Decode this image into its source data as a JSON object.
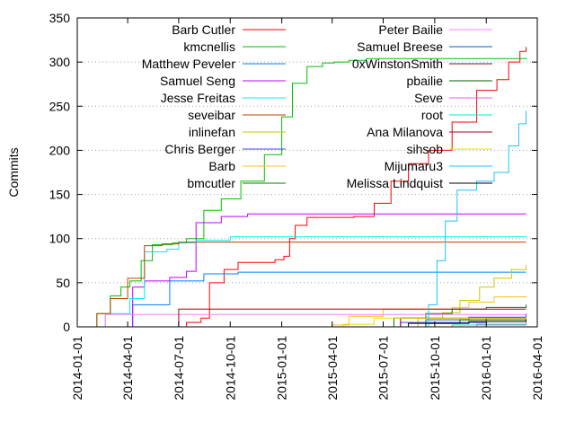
{
  "chart_data": {
    "type": "line",
    "title": "",
    "xlabel": "",
    "ylabel": "Commits",
    "x_ticks": [
      "2014-01-01",
      "2014-04-01",
      "2014-07-01",
      "2014-10-01",
      "2015-01-01",
      "2015-04-01",
      "2015-07-01",
      "2015-10-01",
      "2016-01-01",
      "2016-04-01"
    ],
    "xlim": [
      "2014-01-01",
      "2016-04-01"
    ],
    "y_ticks": [
      0,
      50,
      100,
      150,
      200,
      250,
      300,
      350
    ],
    "ylim": [
      0,
      350
    ],
    "grid": "horizontal-dotted",
    "legend_position": "top, two columns",
    "series": [
      {
        "name": "Barb Cutler",
        "color": "#ff0000",
        "points": [
          [
            "2014-07-01",
            0
          ],
          [
            "2014-07-15",
            5
          ],
          [
            "2014-08-10",
            10
          ],
          [
            "2014-08-25",
            50
          ],
          [
            "2014-09-20",
            65
          ],
          [
            "2014-10-15",
            73
          ],
          [
            "2014-12-20",
            76
          ],
          [
            "2015-01-05",
            80
          ],
          [
            "2015-01-15",
            100
          ],
          [
            "2015-01-25",
            115
          ],
          [
            "2015-02-15",
            124
          ],
          [
            "2015-05-10",
            125
          ],
          [
            "2015-06-15",
            140
          ],
          [
            "2015-07-15",
            165
          ],
          [
            "2015-08-15",
            185
          ],
          [
            "2015-09-20",
            200
          ],
          [
            "2015-11-01",
            232
          ],
          [
            "2015-12-15",
            268
          ],
          [
            "2016-01-20",
            280
          ],
          [
            "2016-02-10",
            300
          ],
          [
            "2016-03-01",
            312
          ],
          [
            "2016-03-12",
            317
          ]
        ]
      },
      {
        "name": "kmcnellis",
        "color": "#00c000",
        "points": [
          [
            "2014-01-20",
            0
          ],
          [
            "2014-02-05",
            15
          ],
          [
            "2014-03-01",
            35
          ],
          [
            "2014-03-20",
            45
          ],
          [
            "2014-04-05",
            52
          ],
          [
            "2014-04-25",
            75
          ],
          [
            "2014-05-15",
            93
          ],
          [
            "2014-06-20",
            95
          ],
          [
            "2014-07-15",
            100
          ],
          [
            "2014-08-15",
            132
          ],
          [
            "2014-09-15",
            145
          ],
          [
            "2014-10-20",
            165
          ],
          [
            "2014-12-01",
            195
          ],
          [
            "2015-01-01",
            238
          ],
          [
            "2015-01-20",
            276
          ],
          [
            "2015-02-15",
            295
          ],
          [
            "2015-03-15",
            299
          ],
          [
            "2015-04-05",
            300
          ],
          [
            "2015-05-01",
            302
          ],
          [
            "2015-06-01",
            304
          ],
          [
            "2016-03-12",
            305
          ]
        ]
      },
      {
        "name": "Matthew Peveler",
        "color": "#0080ff",
        "points": [
          [
            "2014-01-20",
            0
          ],
          [
            "2014-04-10",
            25
          ],
          [
            "2014-06-15",
            52
          ],
          [
            "2014-08-15",
            60
          ],
          [
            "2014-10-15",
            62
          ],
          [
            "2016-03-12",
            62
          ]
        ]
      },
      {
        "name": "Samuel Seng",
        "color": "#c000ff",
        "points": [
          [
            "2014-01-20",
            0
          ],
          [
            "2014-04-10",
            45
          ],
          [
            "2014-05-01",
            52
          ],
          [
            "2014-06-15",
            56
          ],
          [
            "2014-07-15",
            63
          ],
          [
            "2014-08-01",
            118
          ],
          [
            "2014-09-15",
            125
          ],
          [
            "2014-11-01",
            128
          ],
          [
            "2016-03-12",
            128
          ]
        ]
      },
      {
        "name": "Jesse Freitas",
        "color": "#00eeee",
        "points": [
          [
            "2014-01-20",
            0
          ],
          [
            "2014-02-20",
            15
          ],
          [
            "2014-04-05",
            32
          ],
          [
            "2014-05-01",
            85
          ],
          [
            "2014-06-10",
            88
          ],
          [
            "2014-07-01",
            95
          ],
          [
            "2014-08-01",
            98
          ],
          [
            "2014-10-01",
            102
          ],
          [
            "2016-03-12",
            103
          ]
        ]
      },
      {
        "name": "seveibar",
        "color": "#c04000",
        "points": [
          [
            "2014-01-20",
            0
          ],
          [
            "2014-02-05",
            15
          ],
          [
            "2014-03-01",
            32
          ],
          [
            "2014-04-01",
            55
          ],
          [
            "2014-05-01",
            92
          ],
          [
            "2014-06-01",
            94
          ],
          [
            "2014-07-01",
            96
          ],
          [
            "2016-03-12",
            96
          ]
        ]
      },
      {
        "name": "inlinefan",
        "color": "#c8c800",
        "points": [
          [
            "2015-07-20",
            0
          ],
          [
            "2015-09-01",
            10
          ],
          [
            "2015-10-15",
            16
          ],
          [
            "2015-11-15",
            30
          ],
          [
            "2015-12-20",
            45
          ],
          [
            "2016-01-15",
            55
          ],
          [
            "2016-02-15",
            65
          ],
          [
            "2016-03-12",
            70
          ]
        ]
      },
      {
        "name": "Chris Berger",
        "color": "#4040ff",
        "points": [
          [
            "2014-01-20",
            0
          ],
          [
            "2015-08-01",
            5
          ],
          [
            "2016-01-01",
            10
          ],
          [
            "2016-03-12",
            15
          ]
        ]
      },
      {
        "name": "Barb",
        "color": "#ffc020",
        "points": [
          [
            "2014-06-01",
            0
          ],
          [
            "2015-04-01",
            2
          ],
          [
            "2015-05-01",
            12
          ],
          [
            "2015-07-01",
            20
          ],
          [
            "2015-11-01",
            22
          ],
          [
            "2015-12-01",
            28
          ],
          [
            "2016-01-15",
            34
          ],
          [
            "2016-03-12",
            35
          ]
        ]
      },
      {
        "name": "bmcutler",
        "color": "#008000",
        "points": [
          [
            "2015-03-01",
            0
          ],
          [
            "2015-07-20",
            10
          ],
          [
            "2015-09-15",
            15
          ],
          [
            "2015-11-01",
            20
          ],
          [
            "2016-01-01",
            22
          ],
          [
            "2016-03-12",
            25
          ]
        ]
      },
      {
        "name": "Peter Bailie",
        "color": "#ff80ff",
        "points": [
          [
            "2014-02-05",
            0
          ],
          [
            "2014-02-20",
            14
          ],
          [
            "2016-03-12",
            14
          ]
        ]
      },
      {
        "name": "Samuel Breese",
        "color": "#0060c0",
        "points": [
          [
            "2015-05-20",
            0
          ],
          [
            "2015-09-15",
            8
          ],
          [
            "2015-12-01",
            11
          ],
          [
            "2016-03-12",
            12
          ]
        ]
      },
      {
        "name": "0xWinstonSmith",
        "color": "#a00000",
        "points": [
          [
            "2014-06-15",
            0
          ],
          [
            "2014-07-01",
            20
          ],
          [
            "2016-03-12",
            20
          ]
        ]
      },
      {
        "name": "pbailie",
        "color": "#006000",
        "points": [
          [
            "2015-07-01",
            0
          ],
          [
            "2015-09-15",
            4
          ],
          [
            "2015-11-15",
            8
          ],
          [
            "2016-03-12",
            9
          ]
        ]
      },
      {
        "name": "Seve",
        "color": "#e060e0",
        "points": [
          [
            "2015-09-01",
            0
          ],
          [
            "2015-12-15",
            3
          ],
          [
            "2016-03-12",
            5
          ]
        ]
      },
      {
        "name": "root",
        "color": "#00f0c0",
        "points": [
          [
            "2015-09-10",
            0
          ],
          [
            "2015-11-01",
            2
          ],
          [
            "2016-03-12",
            3
          ]
        ]
      },
      {
        "name": "Ana Milanova",
        "color": "#a00020",
        "points": [
          [
            "2015-03-01",
            0
          ],
          [
            "2015-08-01",
            10
          ],
          [
            "2016-03-12",
            11
          ]
        ]
      },
      {
        "name": "sihsob",
        "color": "#e8e000",
        "points": [
          [
            "2015-02-01",
            0
          ],
          [
            "2015-04-20",
            3
          ],
          [
            "2015-06-15",
            10
          ],
          [
            "2016-03-12",
            11
          ]
        ]
      },
      {
        "name": "Mijumaru3",
        "color": "#20c0ff",
        "points": [
          [
            "2015-09-01",
            0
          ],
          [
            "2015-09-20",
            25
          ],
          [
            "2015-10-05",
            75
          ],
          [
            "2015-10-20",
            120
          ],
          [
            "2015-11-10",
            155
          ],
          [
            "2015-12-15",
            165
          ],
          [
            "2016-01-15",
            175
          ],
          [
            "2016-02-10",
            205
          ],
          [
            "2016-02-28",
            230
          ],
          [
            "2016-03-12",
            245
          ]
        ]
      },
      {
        "name": "Melissa Lindquist",
        "color": "#000000",
        "points": [
          [
            "2015-04-01",
            0
          ],
          [
            "2015-08-15",
            4
          ],
          [
            "2015-12-01",
            6
          ],
          [
            "2016-03-12",
            8
          ]
        ]
      }
    ]
  }
}
